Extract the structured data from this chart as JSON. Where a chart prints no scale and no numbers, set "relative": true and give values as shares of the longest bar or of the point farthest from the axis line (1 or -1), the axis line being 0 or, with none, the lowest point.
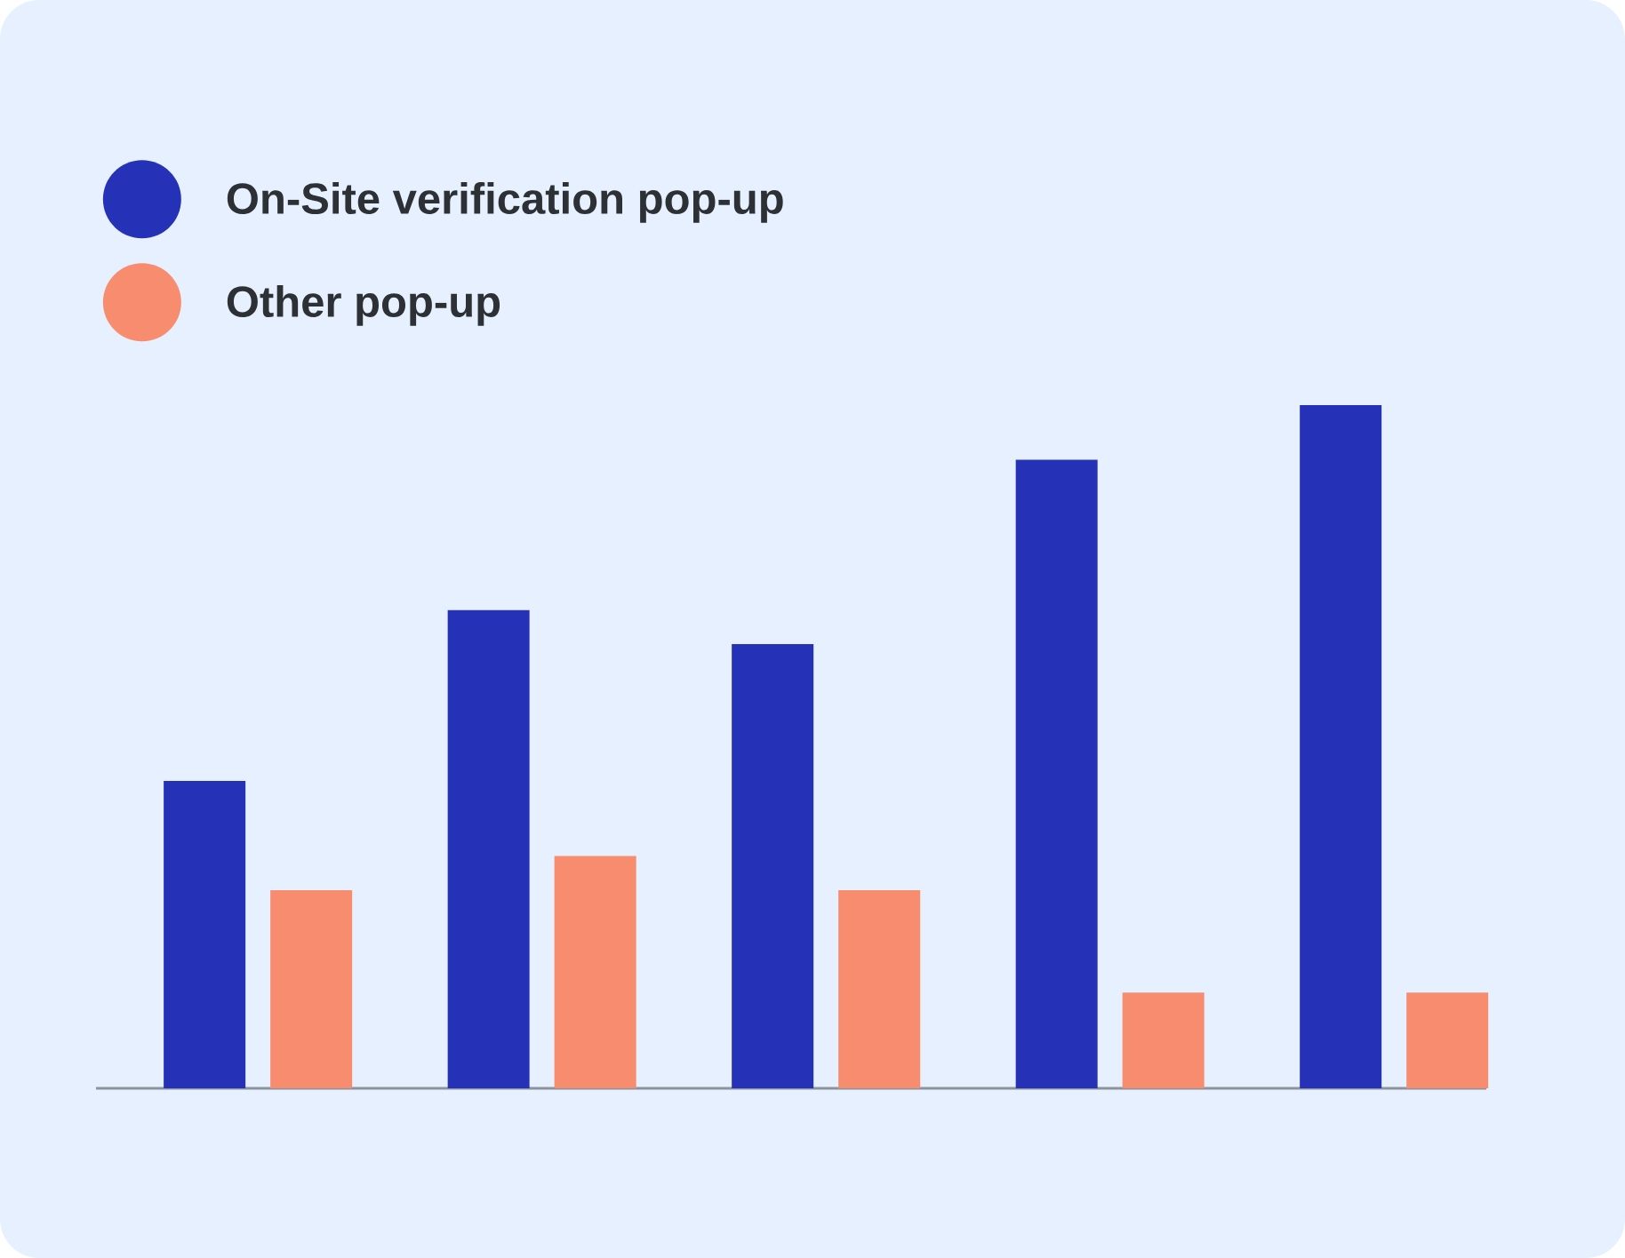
{
  "chart_data": {
    "type": "bar",
    "relative": true,
    "categories": [
      null,
      null,
      null,
      null,
      null
    ],
    "series": [
      {
        "name": "On-Site verification pop-up",
        "color": "#2532b8",
        "values": [
          0.45,
          0.7,
          0.65,
          0.92,
          1
        ]
      },
      {
        "name": "Other pop-up",
        "color": "#f78c6f",
        "values": [
          0.29,
          0.34,
          0.29,
          0.14,
          0.14
        ]
      }
    ],
    "legend": "top left"
  }
}
